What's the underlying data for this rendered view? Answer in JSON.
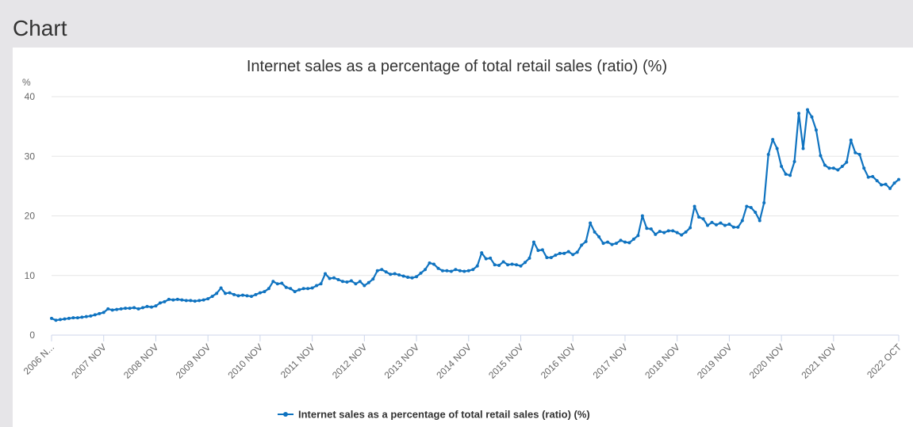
{
  "page": {
    "heading": "Chart"
  },
  "colors": {
    "series": "#0f73c0",
    "grid": "#e6e6e6",
    "axis": "#ccd6eb",
    "text": "#333333",
    "tick": "#666666"
  },
  "chart_data": {
    "type": "line",
    "title": "Internet sales as a percentage of total retail sales (ratio) (%)",
    "ylabel": "%",
    "xlabel": "",
    "ylim": [
      0,
      40
    ],
    "yticks": [
      0,
      10,
      20,
      30,
      40
    ],
    "grid": true,
    "legend_position": "bottom-center",
    "x_start": "2006 NOV",
    "x_end": "2022 OCT",
    "x_ticks": [
      "2006 N...",
      "2007 NOV",
      "2008 NOV",
      "2009 NOV",
      "2010 NOV",
      "2011 NOV",
      "2012 NOV",
      "2013 NOV",
      "2014 NOV",
      "2015 NOV",
      "2016 NOV",
      "2017 NOV",
      "2018 NOV",
      "2019 NOV",
      "2020 NOV",
      "2021 NOV",
      "2022 OCT"
    ],
    "series": [
      {
        "name": "Internet sales as a percentage of total retail sales (ratio) (%)",
        "values": [
          2.8,
          2.5,
          2.6,
          2.7,
          2.8,
          2.9,
          2.9,
          3.0,
          3.1,
          3.2,
          3.4,
          3.6,
          3.8,
          4.4,
          4.2,
          4.3,
          4.4,
          4.5,
          4.5,
          4.6,
          4.4,
          4.6,
          4.8,
          4.7,
          4.9,
          5.4,
          5.6,
          6.0,
          5.9,
          6.0,
          5.9,
          5.8,
          5.8,
          5.7,
          5.8,
          5.9,
          6.1,
          6.5,
          7.0,
          7.9,
          7.0,
          7.1,
          6.8,
          6.6,
          6.7,
          6.6,
          6.5,
          6.8,
          7.1,
          7.3,
          7.8,
          9.0,
          8.6,
          8.7,
          8.0,
          7.8,
          7.3,
          7.6,
          7.8,
          7.8,
          7.9,
          8.3,
          8.6,
          10.3,
          9.5,
          9.6,
          9.3,
          9.0,
          8.9,
          9.1,
          8.6,
          9.0,
          8.3,
          8.8,
          9.4,
          10.8,
          11.0,
          10.6,
          10.2,
          10.3,
          10.1,
          9.9,
          9.7,
          9.6,
          9.8,
          10.4,
          11.0,
          12.1,
          11.9,
          11.2,
          10.8,
          10.8,
          10.7,
          11.0,
          10.8,
          10.7,
          10.8,
          11.0,
          11.6,
          13.8,
          12.8,
          12.9,
          11.8,
          11.7,
          12.3,
          11.8,
          11.9,
          11.8,
          11.6,
          12.2,
          12.9,
          15.6,
          14.2,
          14.3,
          13.0,
          13.0,
          13.4,
          13.7,
          13.7,
          14.0,
          13.5,
          13.9,
          15.1,
          15.7,
          18.8,
          17.3,
          16.5,
          15.4,
          15.6,
          15.2,
          15.4,
          15.9,
          15.6,
          15.5,
          16.1,
          16.7,
          20.0,
          17.9,
          17.8,
          16.9,
          17.4,
          17.2,
          17.5,
          17.5,
          17.2,
          16.8,
          17.3,
          18.0,
          21.6,
          19.8,
          19.5,
          18.4,
          18.9,
          18.5,
          18.8,
          18.4,
          18.6,
          18.1,
          18.1,
          19.2,
          21.6,
          21.4,
          20.6,
          19.2,
          22.2,
          30.3,
          32.8,
          31.3,
          28.3,
          27.0,
          26.8,
          29.1,
          37.2,
          31.3,
          37.8,
          36.6,
          34.4,
          30.1,
          28.5,
          28.0,
          28.0,
          27.7,
          28.3,
          29.0,
          32.7,
          30.6,
          30.3,
          28.0,
          26.5,
          26.6,
          25.9,
          25.2,
          25.3,
          24.6,
          25.5,
          26.1
        ]
      }
    ]
  }
}
